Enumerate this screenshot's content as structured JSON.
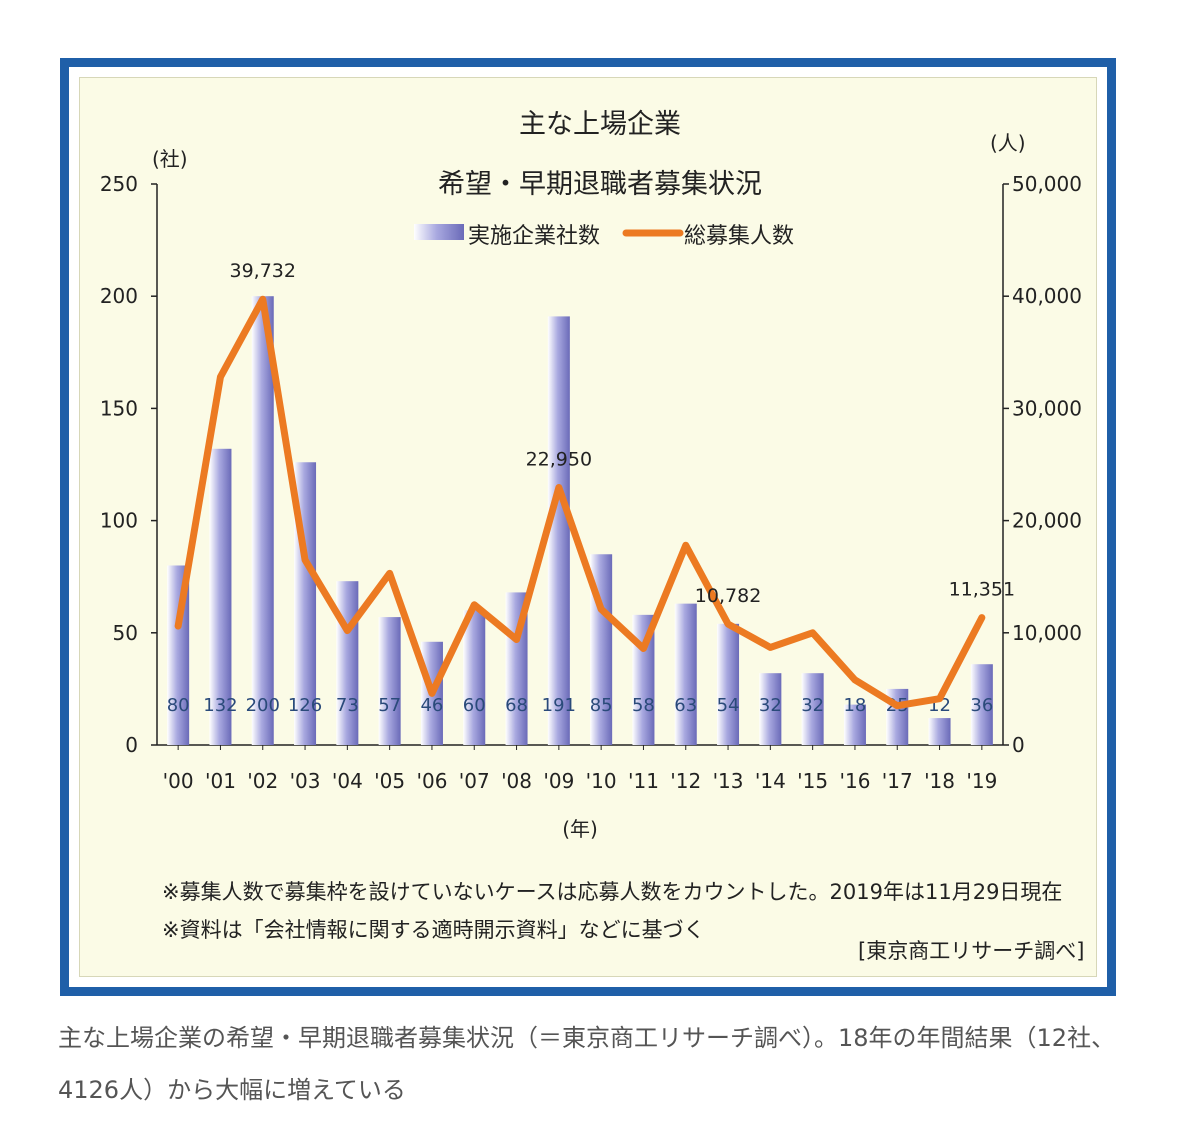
{
  "chart_data": {
    "type": "bar",
    "title": "主な上場企業",
    "subtitle": "希望・早期退職者募集状況",
    "xlabel": "(年)",
    "y_left_label": "(社)",
    "y_right_label": "(人)",
    "categories": [
      "'00",
      "'01",
      "'02",
      "'03",
      "'04",
      "'05",
      "'06",
      "'07",
      "'08",
      "'09",
      "'10",
      "'11",
      "'12",
      "'13",
      "'14",
      "'15",
      "'16",
      "'17",
      "'18",
      "'19"
    ],
    "ylim_left": [
      0,
      250
    ],
    "ylim_right": [
      0,
      50000
    ],
    "yticks_left": [
      "250",
      "200",
      "150",
      "100",
      "50",
      "0"
    ],
    "yticks_right": [
      "50,000",
      "40,000",
      "30,000",
      "20,000",
      "10,000",
      "0"
    ],
    "series": [
      {
        "name": "実施企業社数",
        "type": "bar",
        "axis": "left",
        "color": "#a9a9e0",
        "values": [
          80,
          132,
          200,
          126,
          73,
          57,
          46,
          60,
          68,
          191,
          85,
          58,
          63,
          54,
          32,
          32,
          18,
          25,
          12,
          36
        ]
      },
      {
        "name": "総募集人数",
        "type": "line",
        "axis": "right",
        "color": "#ec7a22",
        "values": [
          10600,
          32800,
          39732,
          16500,
          10200,
          15300,
          4600,
          12500,
          9400,
          22950,
          12100,
          8600,
          17800,
          10782,
          8700,
          10000,
          5800,
          3500,
          4126,
          11351
        ]
      }
    ],
    "point_labels": [
      {
        "index": 2,
        "text": "39,732"
      },
      {
        "index": 9,
        "text": "22,950"
      },
      {
        "index": 13,
        "text": "10,782"
      },
      {
        "index": 19,
        "text": "11,351"
      }
    ],
    "grid": false,
    "legend_position": "top-center"
  },
  "notes": [
    "※募集人数で募集枠を設けていないケースは応募人数をカウントした。2019年は11月29日現在",
    "※資料は「会社情報に関する適時開示資料」などに基づく"
  ],
  "source": "[東京商工リサーチ調べ]",
  "caption": [
    "主な上場企業の希望・早期退職者募集状況（＝東京商工リサーチ調べ）。18年の年間結果（12社、",
    "4126人）から大幅に増えている"
  ],
  "colors": {
    "frame": "#1f5fa8",
    "panel": "#fbfbe6",
    "bar": "#a9a9e0",
    "line": "#ec7a22"
  }
}
